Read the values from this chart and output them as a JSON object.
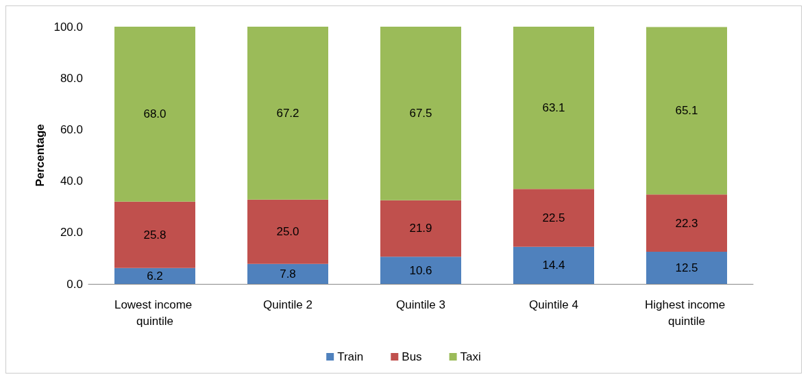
{
  "chart_data": {
    "type": "bar",
    "stacked": true,
    "ylabel": "Percentage",
    "categories": [
      "Lowest income quintile",
      "Quintile 2",
      "Quintile 3",
      "Quintile 4",
      "Highest income quintile"
    ],
    "series": [
      {
        "name": "Train",
        "color": "#4f81bd",
        "values": [
          6.2,
          7.8,
          10.6,
          14.4,
          12.5
        ],
        "value_labels": [
          "6.2",
          "7.8",
          "10.6",
          "14.4",
          "12.5"
        ]
      },
      {
        "name": "Bus",
        "color": "#c0504d",
        "values": [
          25.8,
          25.0,
          21.9,
          22.5,
          22.3
        ],
        "value_labels": [
          "25.8",
          "25.0",
          "21.9",
          "22.5",
          "22.3"
        ]
      },
      {
        "name": "Taxi",
        "color": "#9bbb59",
        "values": [
          68.0,
          67.2,
          67.5,
          63.1,
          65.1
        ],
        "value_labels": [
          "68.0",
          "67.2",
          "67.5",
          "63.1",
          "65.1"
        ]
      }
    ],
    "ylim": [
      0,
      100
    ],
    "yticks": [
      {
        "value": 0,
        "label": "0.0"
      },
      {
        "value": 20,
        "label": "20.0"
      },
      {
        "value": 40,
        "label": "40.0"
      },
      {
        "value": 60,
        "label": "60.0"
      },
      {
        "value": 80,
        "label": "80.0"
      },
      {
        "value": 100,
        "label": "100.0"
      }
    ],
    "grid": false,
    "legend": "bottom"
  }
}
